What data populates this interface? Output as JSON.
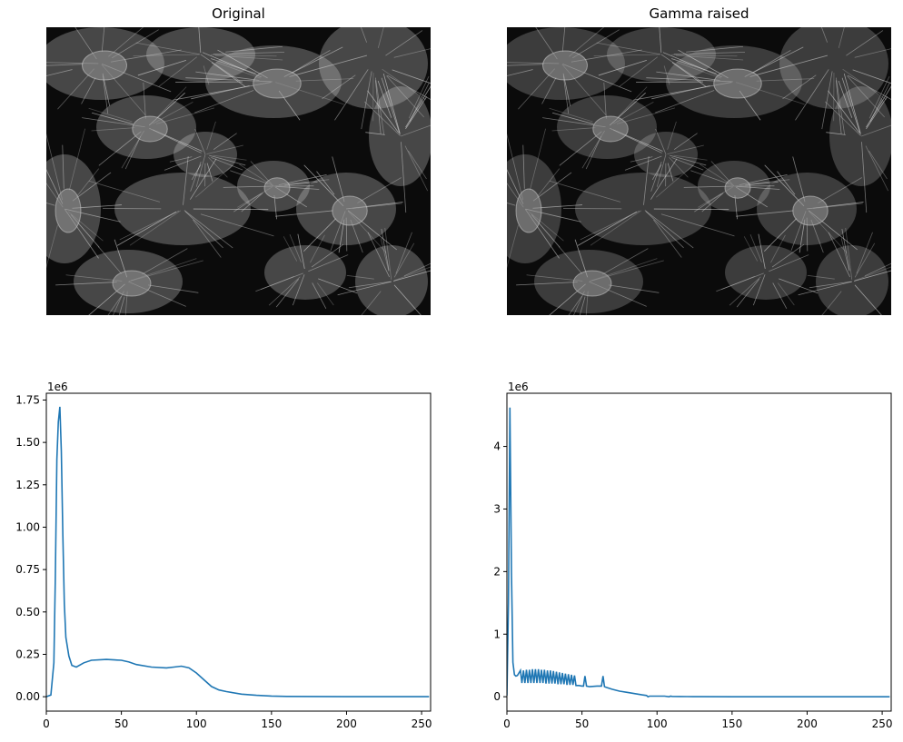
{
  "figure": {
    "panels": [
      {
        "title": "Original",
        "image_desc": "grayscale microscopy image of cells with fibrous cytoskeleton"
      },
      {
        "title": "Gamma raised",
        "image_desc": "grayscale microscopy image of cells, gamma-adjusted"
      }
    ]
  },
  "colors": {
    "line": "#1f77b4",
    "axis": "#000000",
    "image_bg": "#0b0b0b"
  },
  "chart_data": [
    {
      "type": "line",
      "title": "",
      "xlabel": "",
      "ylabel": "",
      "offset_text": "1e6",
      "xlim": [
        0,
        256
      ],
      "ylim": [
        -0.085,
        1.79
      ],
      "xticks": [
        0,
        50,
        100,
        150,
        200,
        250
      ],
      "xtick_labels": [
        "0",
        "50",
        "100",
        "150",
        "200",
        "250"
      ],
      "yticks": [
        0,
        0.25,
        0.5,
        0.75,
        1.0,
        1.25,
        1.5,
        1.75
      ],
      "ytick_labels": [
        "0.00",
        "0.25",
        "0.50",
        "0.75",
        "1.00",
        "1.25",
        "1.50",
        "1.75"
      ],
      "series": [
        {
          "x": [
            0,
            3,
            5,
            6,
            7,
            8,
            9,
            10,
            11,
            12,
            13,
            15,
            17,
            20,
            25,
            30,
            40,
            50,
            55,
            60,
            70,
            80,
            85,
            90,
            95,
            100,
            105,
            110,
            115,
            120,
            130,
            140,
            150,
            160,
            180,
            200,
            220,
            240,
            255
          ],
          "y": [
            0.0,
            0.01,
            0.2,
            0.7,
            1.4,
            1.62,
            1.71,
            1.45,
            0.95,
            0.55,
            0.35,
            0.24,
            0.185,
            0.175,
            0.2,
            0.215,
            0.22,
            0.215,
            0.205,
            0.19,
            0.175,
            0.17,
            0.175,
            0.18,
            0.17,
            0.14,
            0.1,
            0.06,
            0.04,
            0.03,
            0.015,
            0.008,
            0.004,
            0.002,
            0.001,
            0.0,
            0.0,
            0.0,
            0.0
          ]
        }
      ]
    },
    {
      "type": "line",
      "title": "",
      "xlabel": "",
      "ylabel": "",
      "offset_text": "1e6",
      "xlim": [
        0,
        256
      ],
      "ylim": [
        -0.23,
        4.85
      ],
      "xticks": [
        0,
        50,
        100,
        150,
        200,
        250
      ],
      "xtick_labels": [
        "0",
        "50",
        "100",
        "150",
        "200",
        "250"
      ],
      "yticks": [
        0,
        1,
        2,
        3,
        4
      ],
      "ytick_labels": [
        "0",
        "1",
        "2",
        "3",
        "4"
      ],
      "series": [
        {
          "x": [
            0,
            1,
            2,
            3,
            4,
            5,
            6,
            7,
            8,
            9,
            10,
            11,
            12,
            13,
            14,
            15,
            16,
            17,
            18,
            19,
            20,
            21,
            22,
            23,
            24,
            25,
            26,
            27,
            28,
            29,
            30,
            31,
            32,
            33,
            34,
            35,
            36,
            37,
            38,
            39,
            40,
            41,
            42,
            43,
            44,
            45,
            46,
            48,
            50,
            51,
            52,
            53,
            55,
            60,
            63,
            64,
            65,
            66,
            70,
            75,
            80,
            85,
            90,
            93,
            94,
            95,
            100,
            105,
            108,
            109,
            110,
            115,
            120,
            130,
            150,
            200,
            255
          ],
          "y": [
            0.02,
            1.5,
            4.62,
            2.0,
            0.55,
            0.35,
            0.33,
            0.34,
            0.38,
            0.42,
            0.22,
            0.42,
            0.22,
            0.43,
            0.22,
            0.43,
            0.22,
            0.44,
            0.22,
            0.44,
            0.22,
            0.44,
            0.22,
            0.43,
            0.22,
            0.43,
            0.21,
            0.42,
            0.21,
            0.42,
            0.21,
            0.41,
            0.21,
            0.4,
            0.2,
            0.39,
            0.2,
            0.38,
            0.2,
            0.37,
            0.19,
            0.36,
            0.19,
            0.35,
            0.19,
            0.34,
            0.18,
            0.18,
            0.17,
            0.17,
            0.33,
            0.17,
            0.16,
            0.17,
            0.17,
            0.33,
            0.16,
            0.15,
            0.12,
            0.09,
            0.07,
            0.05,
            0.03,
            0.02,
            0.0,
            0.01,
            0.01,
            0.01,
            0.0,
            0.01,
            0.005,
            0.003,
            0.002,
            0.001,
            0.0,
            0.0,
            0.0
          ]
        }
      ]
    }
  ]
}
